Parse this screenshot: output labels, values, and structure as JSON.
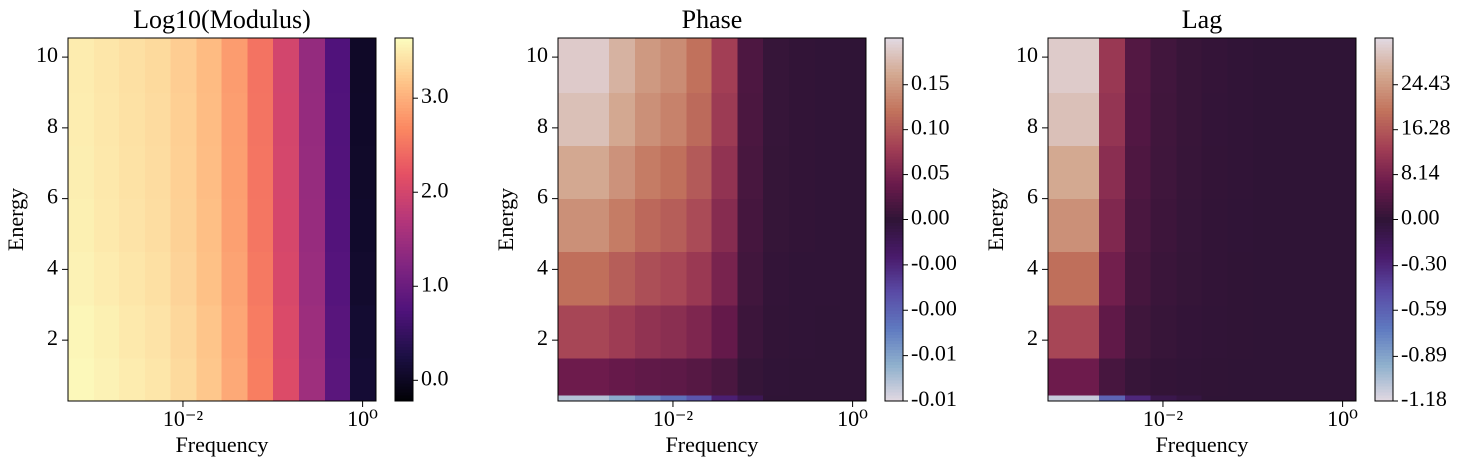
{
  "chart_data": [
    {
      "type": "heatmap",
      "title": "Log10(Modulus)",
      "xlabel": "Frequency",
      "ylabel": "Energy",
      "xscale": "log",
      "xlim": [
        0.000525,
        1.41
      ],
      "ylim": [
        0.28,
        10.54
      ],
      "xticks": [
        {
          "value": 0.01,
          "label": "10⁻²"
        },
        {
          "value": 1,
          "label": "10⁰"
        }
      ],
      "yticks": [
        2,
        4,
        6,
        8,
        10
      ],
      "x_edges": [
        0.000525,
        0.00102,
        0.00195,
        0.0038,
        0.00724,
        0.0141,
        0.0269,
        0.0525,
        0.1,
        0.195,
        0.38,
        0.724,
        1.41
      ],
      "y_edges": [
        0.28,
        0.45,
        1.5,
        3,
        4.5,
        6,
        7.5,
        9,
        10.54
      ],
      "z": [
        [
          3.6,
          3.55,
          3.5,
          3.45,
          3.35,
          3.2,
          2.95,
          2.6,
          2.1,
          1.5,
          0.85,
          0.15
        ],
        [
          3.6,
          3.55,
          3.5,
          3.45,
          3.35,
          3.2,
          2.95,
          2.6,
          2.1,
          1.5,
          0.85,
          0.15
        ],
        [
          3.58,
          3.53,
          3.48,
          3.43,
          3.33,
          3.18,
          2.93,
          2.58,
          2.08,
          1.48,
          0.83,
          0.13
        ],
        [
          3.55,
          3.5,
          3.45,
          3.4,
          3.3,
          3.15,
          2.9,
          2.55,
          2.05,
          1.45,
          0.8,
          0.1
        ],
        [
          3.53,
          3.48,
          3.43,
          3.38,
          3.28,
          3.13,
          2.88,
          2.53,
          2.03,
          1.43,
          0.78,
          0.08
        ],
        [
          3.52,
          3.47,
          3.42,
          3.37,
          3.27,
          3.12,
          2.87,
          2.52,
          2.02,
          1.42,
          0.77,
          0.07
        ],
        [
          3.51,
          3.46,
          3.41,
          3.36,
          3.26,
          3.11,
          2.86,
          2.51,
          2.01,
          1.41,
          0.76,
          0.06
        ],
        [
          3.5,
          3.45,
          3.4,
          3.35,
          3.25,
          3.1,
          2.85,
          2.5,
          2.0,
          1.4,
          0.75,
          0.05
        ]
      ],
      "colorbar": {
        "norm": "linear",
        "lim": [
          -0.22,
          3.64
        ],
        "ticks": [
          {
            "value": 0,
            "label": "0.0"
          },
          {
            "value": 1,
            "label": "1.0"
          },
          {
            "value": 2,
            "label": "2.0"
          },
          {
            "value": 3,
            "label": "3.0"
          }
        ],
        "colormap": [
          "#000004",
          "#1c1044",
          "#4f127b",
          "#812581",
          "#b5367a",
          "#e55064",
          "#fb8761",
          "#fec287",
          "#fcfdbf"
        ]
      }
    },
    {
      "type": "heatmap",
      "title": "Phase",
      "xlabel": "Frequency",
      "ylabel": "Energy",
      "xscale": "log",
      "xlim": [
        0.000525,
        1.41
      ],
      "ylim": [
        0.28,
        10.54
      ],
      "xticks": [
        {
          "value": 0.01,
          "label": "10⁻²"
        },
        {
          "value": 1,
          "label": "10⁰"
        }
      ],
      "yticks": [
        2,
        4,
        6,
        8,
        10
      ],
      "x_edges": [
        0.000525,
        0.00102,
        0.00195,
        0.0038,
        0.00724,
        0.0141,
        0.0269,
        0.0525,
        0.1,
        0.195,
        0.38,
        0.724,
        1.41
      ],
      "y_edges": [
        0.28,
        0.45,
        1.5,
        3,
        4.5,
        6,
        7.5,
        9,
        10.54
      ],
      "z": [
        [
          -0.008,
          -0.008,
          -0.007,
          -0.006,
          -0.005,
          -0.004,
          -0.002,
          -0.001,
          0,
          0,
          0,
          0
        ],
        [
          0.042,
          0.042,
          0.037,
          0.033,
          0.031,
          0.026,
          0.018,
          0.004,
          0.001,
          0,
          0,
          0
        ],
        [
          0.086,
          0.086,
          0.077,
          0.068,
          0.063,
          0.054,
          0.036,
          0.009,
          0.002,
          0.001,
          0,
          0
        ],
        [
          0.118,
          0.118,
          0.105,
          0.093,
          0.087,
          0.074,
          0.05,
          0.012,
          0.003,
          0.001,
          0.001,
          0
        ],
        [
          0.143,
          0.143,
          0.128,
          0.113,
          0.105,
          0.09,
          0.06,
          0.015,
          0.004,
          0.002,
          0.001,
          0
        ],
        [
          0.162,
          0.162,
          0.145,
          0.128,
          0.119,
          0.102,
          0.068,
          0.017,
          0.004,
          0.002,
          0.001,
          0
        ],
        [
          0.181,
          0.181,
          0.162,
          0.143,
          0.133,
          0.114,
          0.076,
          0.019,
          0.005,
          0.002,
          0.001,
          0
        ],
        [
          0.19,
          0.19,
          0.17,
          0.15,
          0.14,
          0.12,
          0.08,
          0.02,
          0.005,
          0.002,
          0.001,
          0
        ]
      ],
      "colorbar": {
        "norm": "twoslope",
        "center": 0,
        "lim": [
          -0.009,
          0.202
        ],
        "ticks": [
          {
            "value": -0.009,
            "label": "-0.01"
          },
          {
            "value": -0.00675,
            "label": "-0.01"
          },
          {
            "value": -0.0045,
            "label": "-0.00"
          },
          {
            "value": -0.00225,
            "label": "-0.00"
          },
          {
            "value": 0,
            "label": "0.00"
          },
          0.05,
          {
            "value": 0.1,
            "label": "0.10"
          },
          0.15
        ],
        "colormap": [
          "#e2d9e2",
          "#8fb0cd",
          "#5f7ac0",
          "#5a4ba6",
          "#491a6b",
          "#2f1436",
          "#6b1a4c",
          "#a33f55",
          "#c2735c",
          "#d3a890",
          "#e2d9e2"
        ]
      }
    },
    {
      "type": "heatmap",
      "title": "Lag",
      "xlabel": "Frequency",
      "ylabel": "Energy",
      "xscale": "log",
      "xlim": [
        0.000525,
        1.41
      ],
      "ylim": [
        0.28,
        10.54
      ],
      "xticks": [
        {
          "value": 0.01,
          "label": "10⁻²"
        },
        {
          "value": 1,
          "label": "10⁰"
        }
      ],
      "yticks": [
        2,
        4,
        6,
        8,
        10
      ],
      "x_edges": [
        0.000525,
        0.00102,
        0.00195,
        0.0038,
        0.00724,
        0.0141,
        0.0269,
        0.0525,
        0.1,
        0.195,
        0.38,
        0.724,
        1.41
      ],
      "y_edges": [
        0.28,
        0.45,
        1.5,
        3,
        4.5,
        6,
        7.5,
        9,
        10.54
      ],
      "z": [
        [
          -1.1,
          -1.1,
          -0.6,
          -0.3,
          -0.1,
          -0.05,
          0,
          0,
          0,
          0,
          0,
          0
        ],
        [
          6.8,
          6.8,
          2.6,
          0.9,
          0.4,
          0.22,
          0.11,
          0.04,
          0.01,
          0,
          0,
          0
        ],
        [
          14,
          14,
          5.4,
          1.8,
          0.9,
          0.45,
          0.23,
          0.09,
          0.02,
          0.01,
          0,
          0
        ],
        [
          19.2,
          19.2,
          7.4,
          2.5,
          1.2,
          0.62,
          0.31,
          0.12,
          0.03,
          0.01,
          0.01,
          0
        ],
        [
          23.3,
          23.3,
          9,
          3,
          1.5,
          0.75,
          0.38,
          0.15,
          0.04,
          0.02,
          0.01,
          0
        ],
        [
          26.4,
          26.4,
          10.2,
          3.4,
          1.7,
          0.85,
          0.43,
          0.17,
          0.04,
          0.02,
          0.01,
          0
        ],
        [
          29.5,
          29.5,
          11.4,
          3.8,
          1.9,
          0.95,
          0.48,
          0.19,
          0.05,
          0.02,
          0.01,
          0
        ],
        [
          31,
          31,
          12,
          4,
          2,
          1,
          0.5,
          0.2,
          0.05,
          0.02,
          0.01,
          0
        ]
      ],
      "colorbar": {
        "norm": "twoslope",
        "center": 0,
        "lim": [
          -1.18,
          32.9
        ],
        "ticks": [
          -1.18,
          -0.89,
          -0.59,
          {
            "value": -0.3,
            "label": "-0.30"
          },
          {
            "value": 0,
            "label": "0.00"
          },
          8.14,
          16.28,
          24.43
        ],
        "colormap": [
          "#e2d9e2",
          "#8fb0cd",
          "#5f7ac0",
          "#5a4ba6",
          "#491a6b",
          "#2f1436",
          "#6b1a4c",
          "#a33f55",
          "#c2735c",
          "#d3a890",
          "#e2d9e2"
        ]
      }
    }
  ]
}
